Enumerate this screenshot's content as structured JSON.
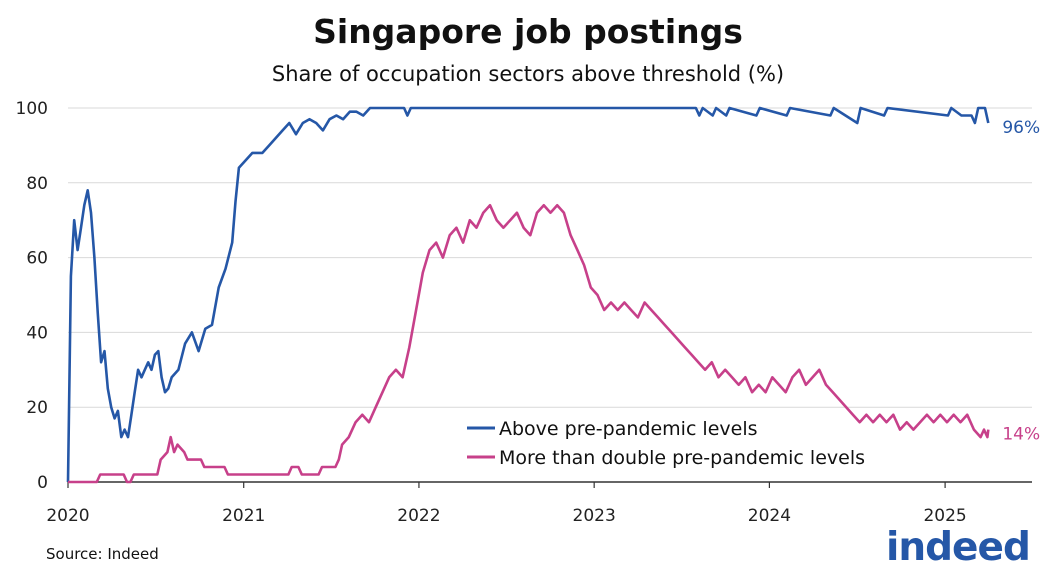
{
  "title": "Singapore job postings",
  "subtitle": "Share of occupation sectors above threshold (%)",
  "source": "Source: Indeed",
  "logo_text": "indeed",
  "colors": {
    "series1": "#2557a7",
    "series2": "#c7408a",
    "grid": "#d9d9d9",
    "axis": "#333333",
    "logo": "#2557a7"
  },
  "chart_data": {
    "type": "line",
    "x_ticks": [
      "2020",
      "2021",
      "2022",
      "2023",
      "2024",
      "2025"
    ],
    "y_ticks": [
      "0",
      "20",
      "40",
      "60",
      "80",
      "100"
    ],
    "xlim": [
      "2020-01-01",
      "2025-07-01"
    ],
    "ylim": [
      0,
      100
    ],
    "grid": "horizontal",
    "legend_position": "bottom-right",
    "series": [
      {
        "name": "Above pre-pandemic levels",
        "end_label": "96%",
        "points": [
          [
            "2020-01-01",
            0
          ],
          [
            "2020-01-07",
            55
          ],
          [
            "2020-01-14",
            70
          ],
          [
            "2020-01-21",
            62
          ],
          [
            "2020-01-28",
            68
          ],
          [
            "2020-02-04",
            74
          ],
          [
            "2020-02-11",
            78
          ],
          [
            "2020-02-18",
            72
          ],
          [
            "2020-02-25",
            60
          ],
          [
            "2020-03-03",
            45
          ],
          [
            "2020-03-10",
            32
          ],
          [
            "2020-03-17",
            35
          ],
          [
            "2020-03-24",
            25
          ],
          [
            "2020-03-31",
            20
          ],
          [
            "2020-04-07",
            17
          ],
          [
            "2020-04-14",
            19
          ],
          [
            "2020-04-21",
            12
          ],
          [
            "2020-04-28",
            14
          ],
          [
            "2020-05-05",
            12
          ],
          [
            "2020-05-12",
            18
          ],
          [
            "2020-05-19",
            24
          ],
          [
            "2020-05-26",
            30
          ],
          [
            "2020-06-02",
            28
          ],
          [
            "2020-06-09",
            30
          ],
          [
            "2020-06-16",
            32
          ],
          [
            "2020-06-23",
            30
          ],
          [
            "2020-06-30",
            34
          ],
          [
            "2020-07-07",
            35
          ],
          [
            "2020-07-14",
            28
          ],
          [
            "2020-07-21",
            24
          ],
          [
            "2020-07-28",
            25
          ],
          [
            "2020-08-04",
            28
          ],
          [
            "2020-08-18",
            30
          ],
          [
            "2020-09-01",
            37
          ],
          [
            "2020-09-15",
            40
          ],
          [
            "2020-09-29",
            35
          ],
          [
            "2020-10-13",
            41
          ],
          [
            "2020-10-27",
            42
          ],
          [
            "2020-11-10",
            52
          ],
          [
            "2020-11-24",
            57
          ],
          [
            "2020-12-08",
            64
          ],
          [
            "2020-12-15",
            75
          ],
          [
            "2020-12-22",
            84
          ],
          [
            "2021-01-05",
            86
          ],
          [
            "2021-01-19",
            88
          ],
          [
            "2021-02-09",
            88
          ],
          [
            "2021-02-23",
            90
          ],
          [
            "2021-03-09",
            92
          ],
          [
            "2021-03-23",
            94
          ],
          [
            "2021-04-06",
            96
          ],
          [
            "2021-04-20",
            93
          ],
          [
            "2021-05-04",
            96
          ],
          [
            "2021-05-18",
            97
          ],
          [
            "2021-06-01",
            96
          ],
          [
            "2021-06-15",
            94
          ],
          [
            "2021-06-29",
            97
          ],
          [
            "2021-07-13",
            98
          ],
          [
            "2021-07-27",
            97
          ],
          [
            "2021-08-10",
            99
          ],
          [
            "2021-08-24",
            99
          ],
          [
            "2021-09-07",
            98
          ],
          [
            "2021-09-21",
            100
          ],
          [
            "2021-12-01",
            100
          ],
          [
            "2021-12-08",
            98
          ],
          [
            "2021-12-15",
            100
          ],
          [
            "2023-08-01",
            100
          ],
          [
            "2023-08-08",
            98
          ],
          [
            "2023-08-15",
            100
          ],
          [
            "2023-09-05",
            98
          ],
          [
            "2023-09-12",
            100
          ],
          [
            "2023-10-03",
            98
          ],
          [
            "2023-10-10",
            100
          ],
          [
            "2023-12-05",
            98
          ],
          [
            "2023-12-12",
            100
          ],
          [
            "2024-02-06",
            98
          ],
          [
            "2024-02-13",
            100
          ],
          [
            "2024-05-07",
            98
          ],
          [
            "2024-05-14",
            100
          ],
          [
            "2024-07-02",
            96
          ],
          [
            "2024-07-09",
            100
          ],
          [
            "2024-08-27",
            98
          ],
          [
            "2024-09-03",
            100
          ],
          [
            "2025-01-07",
            98
          ],
          [
            "2025-01-14",
            100
          ],
          [
            "2025-02-04",
            98
          ],
          [
            "2025-02-25",
            98
          ],
          [
            "2025-03-04",
            96
          ],
          [
            "2025-03-11",
            100
          ],
          [
            "2025-03-25",
            100
          ],
          [
            "2025-04-01",
            96
          ]
        ]
      },
      {
        "name": "More than double pre-pandemic levels",
        "end_label": "14%",
        "points": [
          [
            "2020-01-01",
            0
          ],
          [
            "2020-03-01",
            0
          ],
          [
            "2020-03-08",
            2
          ],
          [
            "2020-04-26",
            2
          ],
          [
            "2020-05-03",
            0
          ],
          [
            "2020-05-10",
            0
          ],
          [
            "2020-05-17",
            2
          ],
          [
            "2020-07-05",
            2
          ],
          [
            "2020-07-12",
            6
          ],
          [
            "2020-07-26",
            8
          ],
          [
            "2020-08-02",
            12
          ],
          [
            "2020-08-09",
            8
          ],
          [
            "2020-08-16",
            10
          ],
          [
            "2020-08-30",
            8
          ],
          [
            "2020-09-06",
            6
          ],
          [
            "2020-10-04",
            6
          ],
          [
            "2020-10-11",
            4
          ],
          [
            "2020-11-22",
            4
          ],
          [
            "2020-11-29",
            2
          ],
          [
            "2021-04-04",
            2
          ],
          [
            "2021-04-11",
            4
          ],
          [
            "2021-04-25",
            4
          ],
          [
            "2021-05-02",
            2
          ],
          [
            "2021-06-06",
            2
          ],
          [
            "2021-06-13",
            4
          ],
          [
            "2021-07-11",
            4
          ],
          [
            "2021-07-18",
            6
          ],
          [
            "2021-07-25",
            10
          ],
          [
            "2021-08-08",
            12
          ],
          [
            "2021-08-22",
            16
          ],
          [
            "2021-09-05",
            18
          ],
          [
            "2021-09-19",
            16
          ],
          [
            "2021-10-03",
            20
          ],
          [
            "2021-10-17",
            24
          ],
          [
            "2021-10-31",
            28
          ],
          [
            "2021-11-14",
            30
          ],
          [
            "2021-11-28",
            28
          ],
          [
            "2021-12-12",
            36
          ],
          [
            "2021-12-26",
            46
          ],
          [
            "2022-01-09",
            56
          ],
          [
            "2022-01-23",
            62
          ],
          [
            "2022-02-06",
            64
          ],
          [
            "2022-02-20",
            60
          ],
          [
            "2022-03-06",
            66
          ],
          [
            "2022-03-20",
            68
          ],
          [
            "2022-04-03",
            64
          ],
          [
            "2022-04-17",
            70
          ],
          [
            "2022-05-01",
            68
          ],
          [
            "2022-05-15",
            72
          ],
          [
            "2022-05-29",
            74
          ],
          [
            "2022-06-12",
            70
          ],
          [
            "2022-06-26",
            68
          ],
          [
            "2022-07-10",
            70
          ],
          [
            "2022-07-24",
            72
          ],
          [
            "2022-08-07",
            68
          ],
          [
            "2022-08-21",
            66
          ],
          [
            "2022-09-04",
            72
          ],
          [
            "2022-09-18",
            74
          ],
          [
            "2022-10-02",
            72
          ],
          [
            "2022-10-16",
            74
          ],
          [
            "2022-10-30",
            72
          ],
          [
            "2022-11-13",
            66
          ],
          [
            "2022-11-27",
            62
          ],
          [
            "2022-12-11",
            58
          ],
          [
            "2022-12-25",
            52
          ],
          [
            "2023-01-08",
            50
          ],
          [
            "2023-01-22",
            46
          ],
          [
            "2023-02-05",
            48
          ],
          [
            "2023-02-19",
            46
          ],
          [
            "2023-03-05",
            48
          ],
          [
            "2023-03-19",
            46
          ],
          [
            "2023-04-02",
            44
          ],
          [
            "2023-04-16",
            48
          ],
          [
            "2023-04-30",
            46
          ],
          [
            "2023-05-14",
            44
          ],
          [
            "2023-05-28",
            42
          ],
          [
            "2023-06-11",
            40
          ],
          [
            "2023-06-25",
            38
          ],
          [
            "2023-07-09",
            36
          ],
          [
            "2023-07-23",
            34
          ],
          [
            "2023-08-06",
            32
          ],
          [
            "2023-08-20",
            30
          ],
          [
            "2023-09-03",
            32
          ],
          [
            "2023-09-17",
            28
          ],
          [
            "2023-10-01",
            30
          ],
          [
            "2023-10-15",
            28
          ],
          [
            "2023-10-29",
            26
          ],
          [
            "2023-11-12",
            28
          ],
          [
            "2023-11-26",
            24
          ],
          [
            "2023-12-10",
            26
          ],
          [
            "2023-12-24",
            24
          ],
          [
            "2024-01-07",
            28
          ],
          [
            "2024-01-21",
            26
          ],
          [
            "2024-02-04",
            24
          ],
          [
            "2024-02-18",
            28
          ],
          [
            "2024-03-03",
            30
          ],
          [
            "2024-03-17",
            26
          ],
          [
            "2024-03-31",
            28
          ],
          [
            "2024-04-14",
            30
          ],
          [
            "2024-04-28",
            26
          ],
          [
            "2024-05-12",
            24
          ],
          [
            "2024-05-26",
            22
          ],
          [
            "2024-06-09",
            20
          ],
          [
            "2024-06-23",
            18
          ],
          [
            "2024-07-07",
            16
          ],
          [
            "2024-07-21",
            18
          ],
          [
            "2024-08-04",
            16
          ],
          [
            "2024-08-18",
            18
          ],
          [
            "2024-09-01",
            16
          ],
          [
            "2024-09-15",
            18
          ],
          [
            "2024-09-29",
            14
          ],
          [
            "2024-10-13",
            16
          ],
          [
            "2024-10-27",
            14
          ],
          [
            "2024-11-10",
            16
          ],
          [
            "2024-11-24",
            18
          ],
          [
            "2024-12-08",
            16
          ],
          [
            "2024-12-22",
            18
          ],
          [
            "2025-01-05",
            16
          ],
          [
            "2025-01-19",
            18
          ],
          [
            "2025-02-02",
            16
          ],
          [
            "2025-02-16",
            18
          ],
          [
            "2025-03-02",
            14
          ],
          [
            "2025-03-16",
            12
          ],
          [
            "2025-03-23",
            14
          ],
          [
            "2025-03-30",
            12
          ],
          [
            "2025-04-01",
            14
          ]
        ]
      }
    ]
  }
}
